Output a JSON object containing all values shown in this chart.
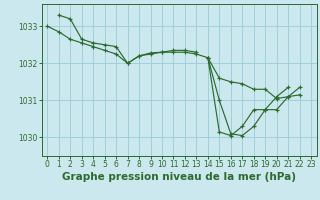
{
  "title": "Graphe pression niveau de la mer (hPa)",
  "xlim": [
    -0.5,
    23.5
  ],
  "ylim": [
    1029.5,
    1033.6
  ],
  "yticks": [
    1030,
    1031,
    1032,
    1033
  ],
  "xticks": [
    0,
    1,
    2,
    3,
    4,
    5,
    6,
    7,
    8,
    9,
    10,
    11,
    12,
    13,
    14,
    15,
    16,
    17,
    18,
    19,
    20,
    21,
    22,
    23
  ],
  "bg_color": "#cce8ef",
  "grid_color": "#99ccd6",
  "line_color": "#2d6a2d",
  "series": [
    {
      "x": [
        0,
        1,
        2,
        3,
        4,
        5,
        6,
        7,
        8,
        9,
        10,
        11,
        12,
        13,
        14,
        15,
        16,
        17,
        18,
        19,
        20,
        21,
        22
      ],
      "y": [
        1033.0,
        1032.85,
        1032.65,
        1032.55,
        1032.45,
        1032.35,
        1032.25,
        1032.0,
        1032.2,
        1032.25,
        1032.3,
        1032.3,
        1032.3,
        1032.25,
        1032.15,
        1031.6,
        1031.5,
        1031.45,
        1031.3,
        1031.3,
        1031.05,
        1031.1,
        1031.15
      ]
    },
    {
      "x": [
        1,
        2,
        3,
        4,
        5,
        6,
        7,
        8,
        9,
        10,
        11,
        12,
        13
      ],
      "y": [
        1033.3,
        1033.2,
        1032.65,
        1032.55,
        1032.5,
        1032.45,
        1032.0,
        1032.2,
        1032.28,
        1032.3,
        1032.35,
        1032.35,
        1032.3
      ]
    },
    {
      "x": [
        14,
        15,
        16,
        17,
        18,
        19,
        20,
        21,
        22
      ],
      "y": [
        1032.15,
        1031.0,
        1030.1,
        1030.05,
        1030.3,
        1030.75,
        1030.75,
        1031.1,
        1031.35
      ]
    },
    {
      "x": [
        14,
        15,
        16,
        17,
        18,
        19,
        20,
        21
      ],
      "y": [
        1032.15,
        1030.15,
        1030.05,
        1030.3,
        1030.75,
        1030.75,
        1031.1,
        1031.35
      ]
    }
  ],
  "title_fontsize": 7.5,
  "tick_fontsize": 5.5
}
